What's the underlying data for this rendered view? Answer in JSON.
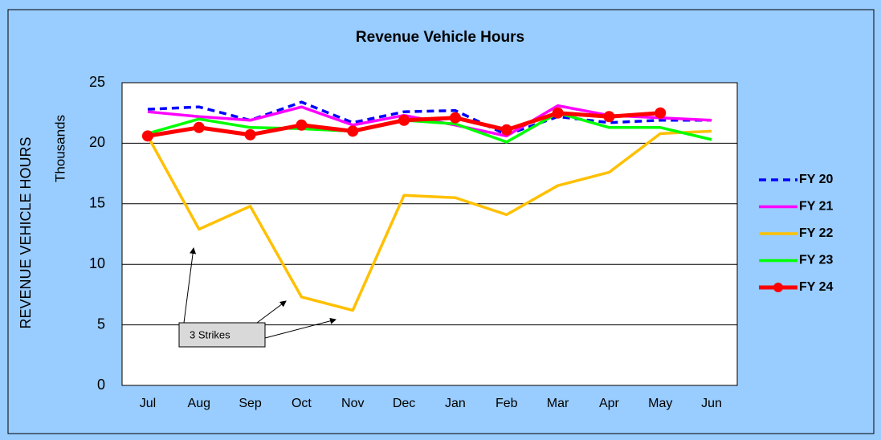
{
  "chart_data": {
    "type": "line",
    "title": "Revenue Vehicle Hours",
    "y_label": "REVENUE VEHICLE HOURS",
    "y_unit_label": "Thousands",
    "annotation": "3 Strikes",
    "categories": [
      "Jul",
      "Aug",
      "Sep",
      "Oct",
      "Nov",
      "Dec",
      "Jan",
      "Feb",
      "Mar",
      "Apr",
      "May",
      "Jun"
    ],
    "ylim": [
      0,
      25
    ],
    "yticks": [
      0,
      5,
      10,
      15,
      20,
      25
    ],
    "grid": true,
    "legend": "right",
    "series": [
      {
        "name": "FY 20",
        "color": "#0000ff",
        "dash": true,
        "values": [
          22.8,
          23.0,
          21.9,
          23.4,
          21.7,
          22.6,
          22.7,
          20.7,
          22.2,
          21.7,
          21.9,
          21.9
        ]
      },
      {
        "name": "FY 21",
        "color": "#ff00ff",
        "values": [
          22.6,
          22.2,
          21.9,
          23.0,
          21.5,
          22.3,
          21.5,
          20.6,
          23.1,
          22.3,
          22.1,
          21.9
        ]
      },
      {
        "name": "FY 22",
        "color": "#ffc000",
        "values": [
          20.6,
          12.9,
          14.8,
          7.3,
          6.2,
          15.7,
          15.5,
          14.1,
          16.5,
          17.6,
          20.8,
          21.0
        ]
      },
      {
        "name": "FY 23",
        "color": "#00ff00",
        "values": [
          20.8,
          22.0,
          21.3,
          21.2,
          21.0,
          21.9,
          21.6,
          20.1,
          22.5,
          21.3,
          21.3,
          20.3
        ]
      },
      {
        "name": "FY 24",
        "color": "#ff0000",
        "marker": "circle",
        "values": [
          20.6,
          21.3,
          20.7,
          21.5,
          21.0,
          21.9,
          22.1,
          21.1,
          22.5,
          22.2,
          22.5,
          null
        ]
      }
    ]
  }
}
